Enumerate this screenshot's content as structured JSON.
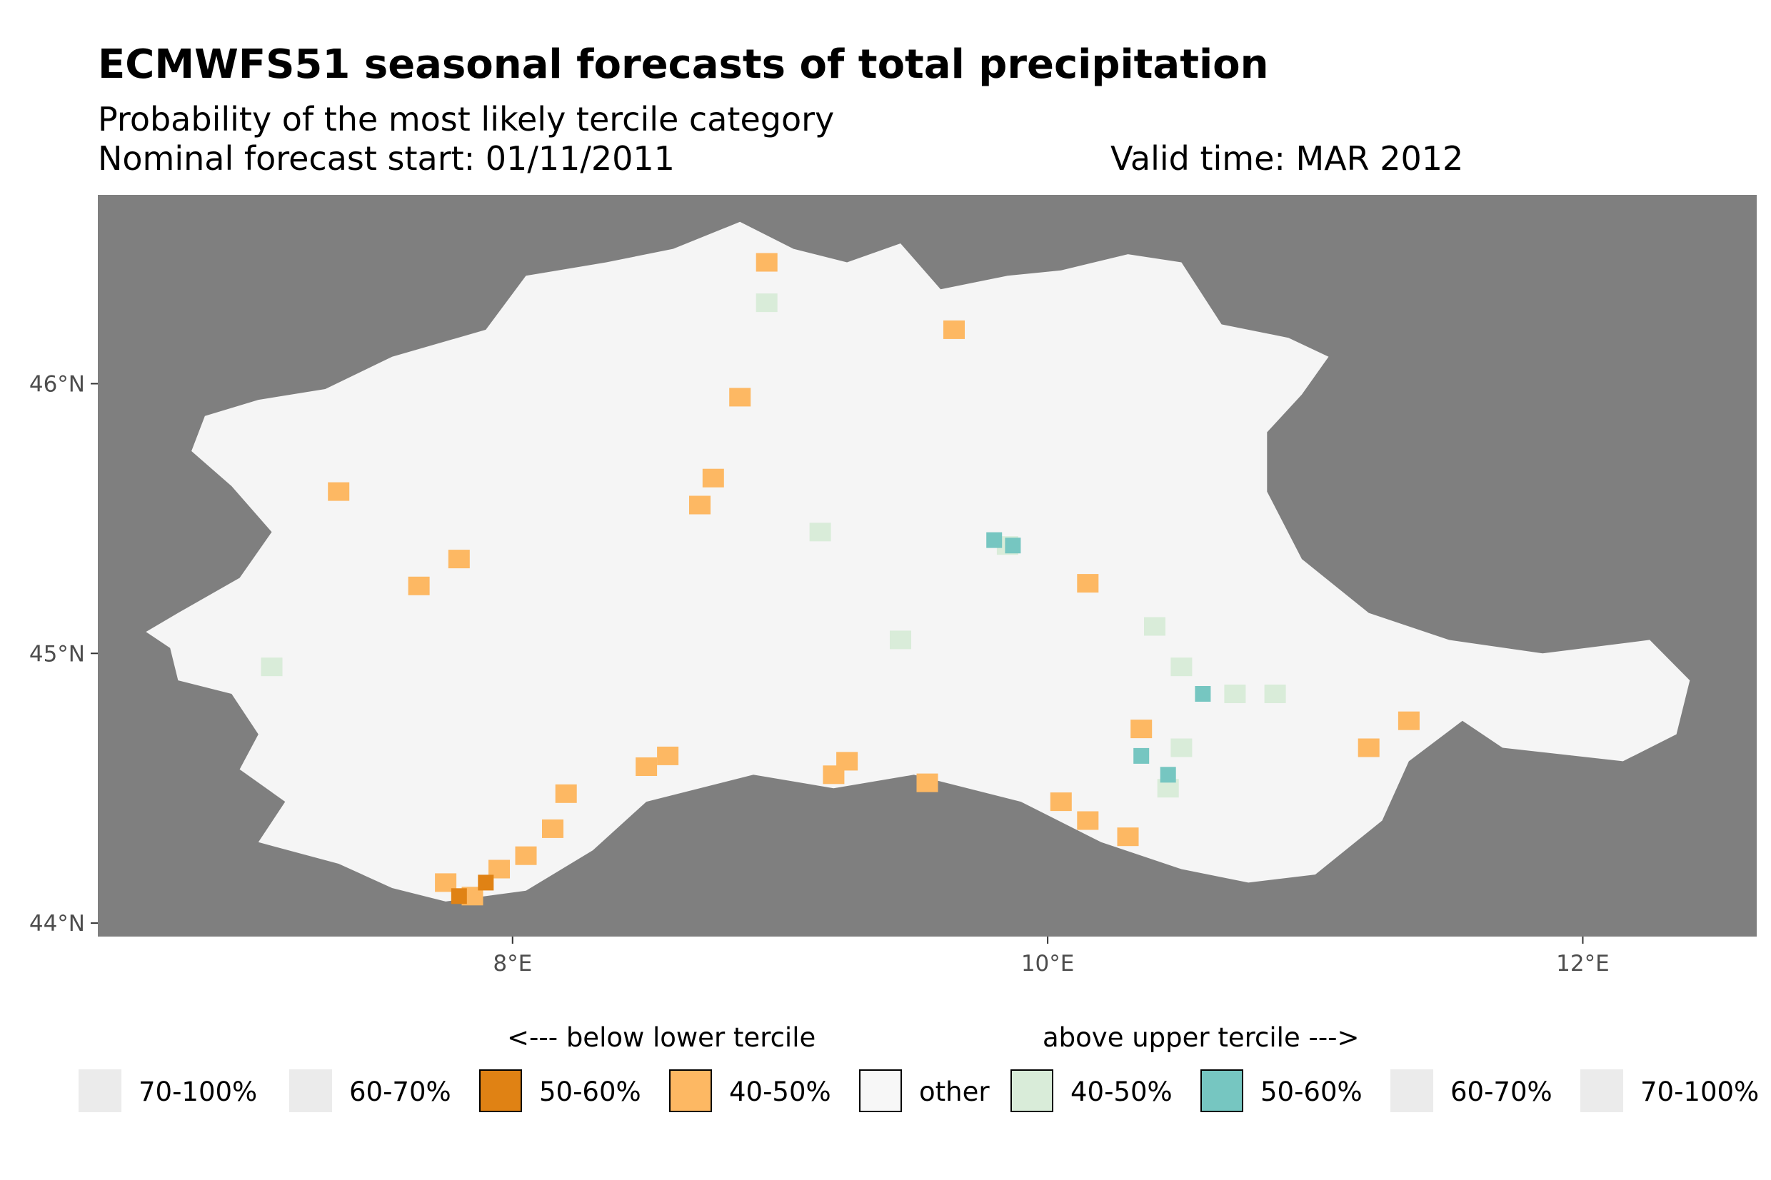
{
  "title": "ECMWFS51 seasonal forecasts of total precipitation",
  "subtitle_line1": "Probability of the most likely tercile category",
  "subtitle_line2_left": "Nominal forecast start: 01/11/2011",
  "subtitle_line2_right": "Valid time: MAR 2012",
  "colors": {
    "panel_background": "#7f7f7f",
    "region_other": "#f5f5f5",
    "below_50_60": "#e08214",
    "below_40_50": "#fdb863",
    "above_40_50": "#d9ecd9",
    "above_50_60": "#76c6c1",
    "unused_extreme": "#ebebeb",
    "missing_pixels": "#6b6b6b"
  },
  "axes": {
    "x_ticks": [
      "8°E",
      "10°E",
      "12°E"
    ],
    "y_ticks": [
      "44°N",
      "45°N",
      "46°N"
    ]
  },
  "chart_data": {
    "type": "heatmap",
    "description_units": "degrees longitude / latitude",
    "xlim": [
      6.45,
      12.65
    ],
    "ylim": [
      43.95,
      46.7
    ],
    "x_ticks": [
      8,
      10,
      12
    ],
    "y_ticks": [
      44,
      45,
      46
    ],
    "region_outline_lonlat": [
      [
        6.63,
        45.08
      ],
      [
        6.72,
        45.02
      ],
      [
        6.75,
        44.9
      ],
      [
        6.95,
        44.85
      ],
      [
        7.05,
        44.7
      ],
      [
        6.98,
        44.57
      ],
      [
        7.15,
        44.45
      ],
      [
        7.05,
        44.3
      ],
      [
        7.35,
        44.22
      ],
      [
        7.55,
        44.13
      ],
      [
        7.75,
        44.08
      ],
      [
        8.05,
        44.12
      ],
      [
        8.3,
        44.27
      ],
      [
        8.5,
        44.45
      ],
      [
        8.9,
        44.55
      ],
      [
        9.2,
        44.5
      ],
      [
        9.5,
        44.55
      ],
      [
        9.9,
        44.45
      ],
      [
        10.2,
        44.3
      ],
      [
        10.5,
        44.2
      ],
      [
        10.75,
        44.15
      ],
      [
        11.0,
        44.18
      ],
      [
        11.25,
        44.38
      ],
      [
        11.35,
        44.6
      ],
      [
        11.55,
        44.75
      ],
      [
        11.7,
        44.65
      ],
      [
        12.15,
        44.6
      ],
      [
        12.35,
        44.7
      ],
      [
        12.4,
        44.9
      ],
      [
        12.25,
        45.05
      ],
      [
        11.85,
        45.0
      ],
      [
        11.5,
        45.05
      ],
      [
        11.2,
        45.15
      ],
      [
        10.95,
        45.35
      ],
      [
        10.82,
        45.6
      ],
      [
        10.82,
        45.82
      ],
      [
        10.95,
        45.96
      ],
      [
        11.05,
        46.1
      ],
      [
        10.9,
        46.17
      ],
      [
        10.65,
        46.22
      ],
      [
        10.5,
        46.45
      ],
      [
        10.3,
        46.48
      ],
      [
        10.05,
        46.42
      ],
      [
        9.85,
        46.4
      ],
      [
        9.6,
        46.35
      ],
      [
        9.45,
        46.52
      ],
      [
        9.25,
        46.45
      ],
      [
        9.05,
        46.5
      ],
      [
        8.85,
        46.6
      ],
      [
        8.6,
        46.5
      ],
      [
        8.35,
        46.45
      ],
      [
        8.05,
        46.4
      ],
      [
        7.9,
        46.2
      ],
      [
        7.55,
        46.1
      ],
      [
        7.3,
        45.98
      ],
      [
        7.05,
        45.94
      ],
      [
        6.85,
        45.88
      ],
      [
        6.8,
        45.75
      ],
      [
        6.95,
        45.62
      ],
      [
        7.1,
        45.45
      ],
      [
        6.98,
        45.28
      ],
      [
        6.75,
        45.15
      ]
    ],
    "category_patches": [
      {
        "category": "below lower tercile 40-50%",
        "cells_lonlat": [
          [
            7.85,
            44.1
          ],
          [
            7.75,
            44.15
          ],
          [
            7.95,
            44.2
          ],
          [
            8.05,
            44.25
          ],
          [
            8.15,
            44.35
          ],
          [
            8.2,
            44.48
          ],
          [
            8.5,
            44.58
          ],
          [
            8.58,
            44.62
          ],
          [
            9.2,
            44.55
          ],
          [
            9.25,
            44.6
          ],
          [
            9.55,
            44.52
          ],
          [
            10.05,
            44.45
          ],
          [
            10.15,
            44.38
          ],
          [
            10.3,
            44.32
          ],
          [
            10.35,
            44.72
          ],
          [
            11.35,
            44.75
          ],
          [
            11.2,
            44.65
          ],
          [
            9.65,
            46.2
          ],
          [
            8.95,
            46.45
          ],
          [
            8.85,
            45.95
          ],
          [
            8.75,
            45.65
          ],
          [
            8.7,
            45.55
          ],
          [
            7.8,
            45.35
          ],
          [
            7.65,
            45.25
          ],
          [
            7.35,
            45.6
          ],
          [
            10.15,
            45.26
          ]
        ]
      },
      {
        "category": "below lower tercile 50-60%",
        "cells_lonlat": [
          [
            7.8,
            44.1
          ],
          [
            7.9,
            44.15
          ]
        ]
      },
      {
        "category": "above upper tercile 40-50%",
        "cells_lonlat": [
          [
            9.85,
            45.4
          ],
          [
            10.4,
            45.1
          ],
          [
            10.5,
            44.95
          ],
          [
            10.7,
            44.85
          ],
          [
            10.85,
            44.85
          ],
          [
            10.5,
            44.65
          ],
          [
            10.45,
            44.5
          ],
          [
            9.15,
            45.45
          ],
          [
            9.45,
            45.05
          ],
          [
            7.1,
            44.95
          ],
          [
            8.95,
            46.3
          ]
        ]
      },
      {
        "category": "above upper tercile 50-60%",
        "cells_lonlat": [
          [
            9.8,
            45.42
          ],
          [
            9.87,
            45.4
          ],
          [
            10.35,
            44.62
          ],
          [
            10.45,
            44.55
          ],
          [
            10.58,
            44.85
          ]
        ]
      }
    ]
  },
  "legend": {
    "header_below": "<--- below lower tercile",
    "header_above": "above upper tercile --->",
    "items": [
      {
        "label": "70-100%",
        "color": "#ebebeb",
        "border": false
      },
      {
        "label": "60-70%",
        "color": "#ebebeb",
        "border": false
      },
      {
        "label": "50-60%",
        "color": "#e08214",
        "border": true
      },
      {
        "label": "40-50%",
        "color": "#fdb863",
        "border": true
      },
      {
        "label": "other",
        "color": "#f7f7f7",
        "border": true
      },
      {
        "label": "40-50%",
        "color": "#d9ecd9",
        "border": true
      },
      {
        "label": "50-60%",
        "color": "#76c6c1",
        "border": true
      },
      {
        "label": "60-70%",
        "color": "#ebebeb",
        "border": false
      },
      {
        "label": "70-100%",
        "color": "#ebebeb",
        "border": false
      }
    ]
  }
}
